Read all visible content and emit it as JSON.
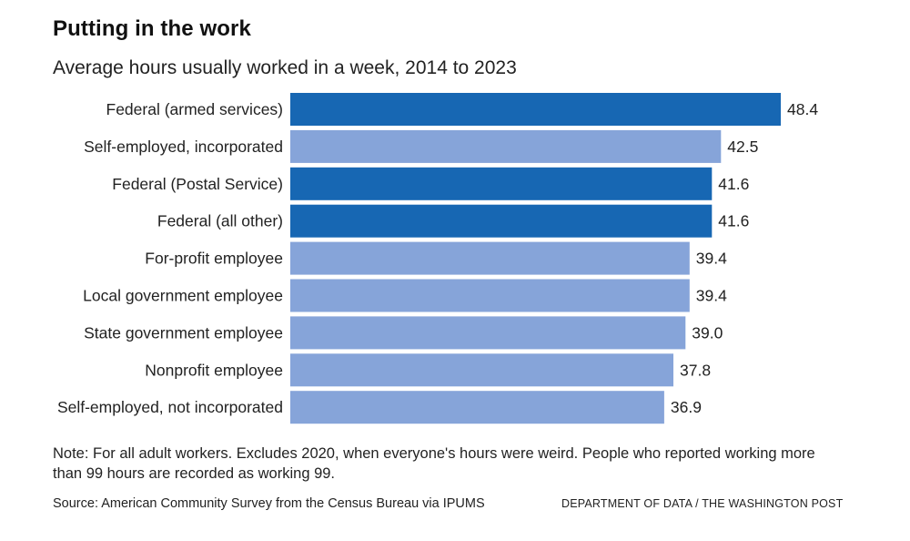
{
  "header": {
    "title": "Putting in the work",
    "subtitle": "Average hours usually worked in a week, 2014 to 2023"
  },
  "chart_data": {
    "type": "bar",
    "orientation": "horizontal",
    "title": "Putting in the work",
    "subtitle": "Average hours usually worked in a week, 2014 to 2023",
    "xlabel": "",
    "ylabel": "",
    "categories": [
      "Federal (armed services)",
      "Self-employed, incorporated",
      "Federal (Postal Service)",
      "Federal (all other)",
      "For-profit employee",
      "Local government employee",
      "State government employee",
      "Nonprofit employee",
      "Self-employed, not incorporated"
    ],
    "values": [
      48.4,
      42.5,
      41.6,
      41.6,
      39.4,
      39.4,
      39.0,
      37.8,
      36.9
    ],
    "value_labels": [
      "48.4",
      "42.5",
      "41.6",
      "41.6",
      "39.4",
      "39.4",
      "39.0",
      "37.8",
      "36.9"
    ],
    "highlight": [
      true,
      false,
      true,
      true,
      false,
      false,
      false,
      false,
      false
    ],
    "xlim": [
      0,
      48.4
    ],
    "grid": false,
    "colors": {
      "highlight": "#1767b3",
      "default": "#86a4d9",
      "label": "#222222"
    }
  },
  "footer": {
    "note": "Note: For all adult workers. Excludes 2020, when everyone's hours were weird. People who reported working more than 99 hours are recorded as working 99.",
    "source": "Source: American Community Survey from the Census Bureau via IPUMS",
    "credit": "DEPARTMENT OF DATA / THE WASHINGTON POST"
  }
}
